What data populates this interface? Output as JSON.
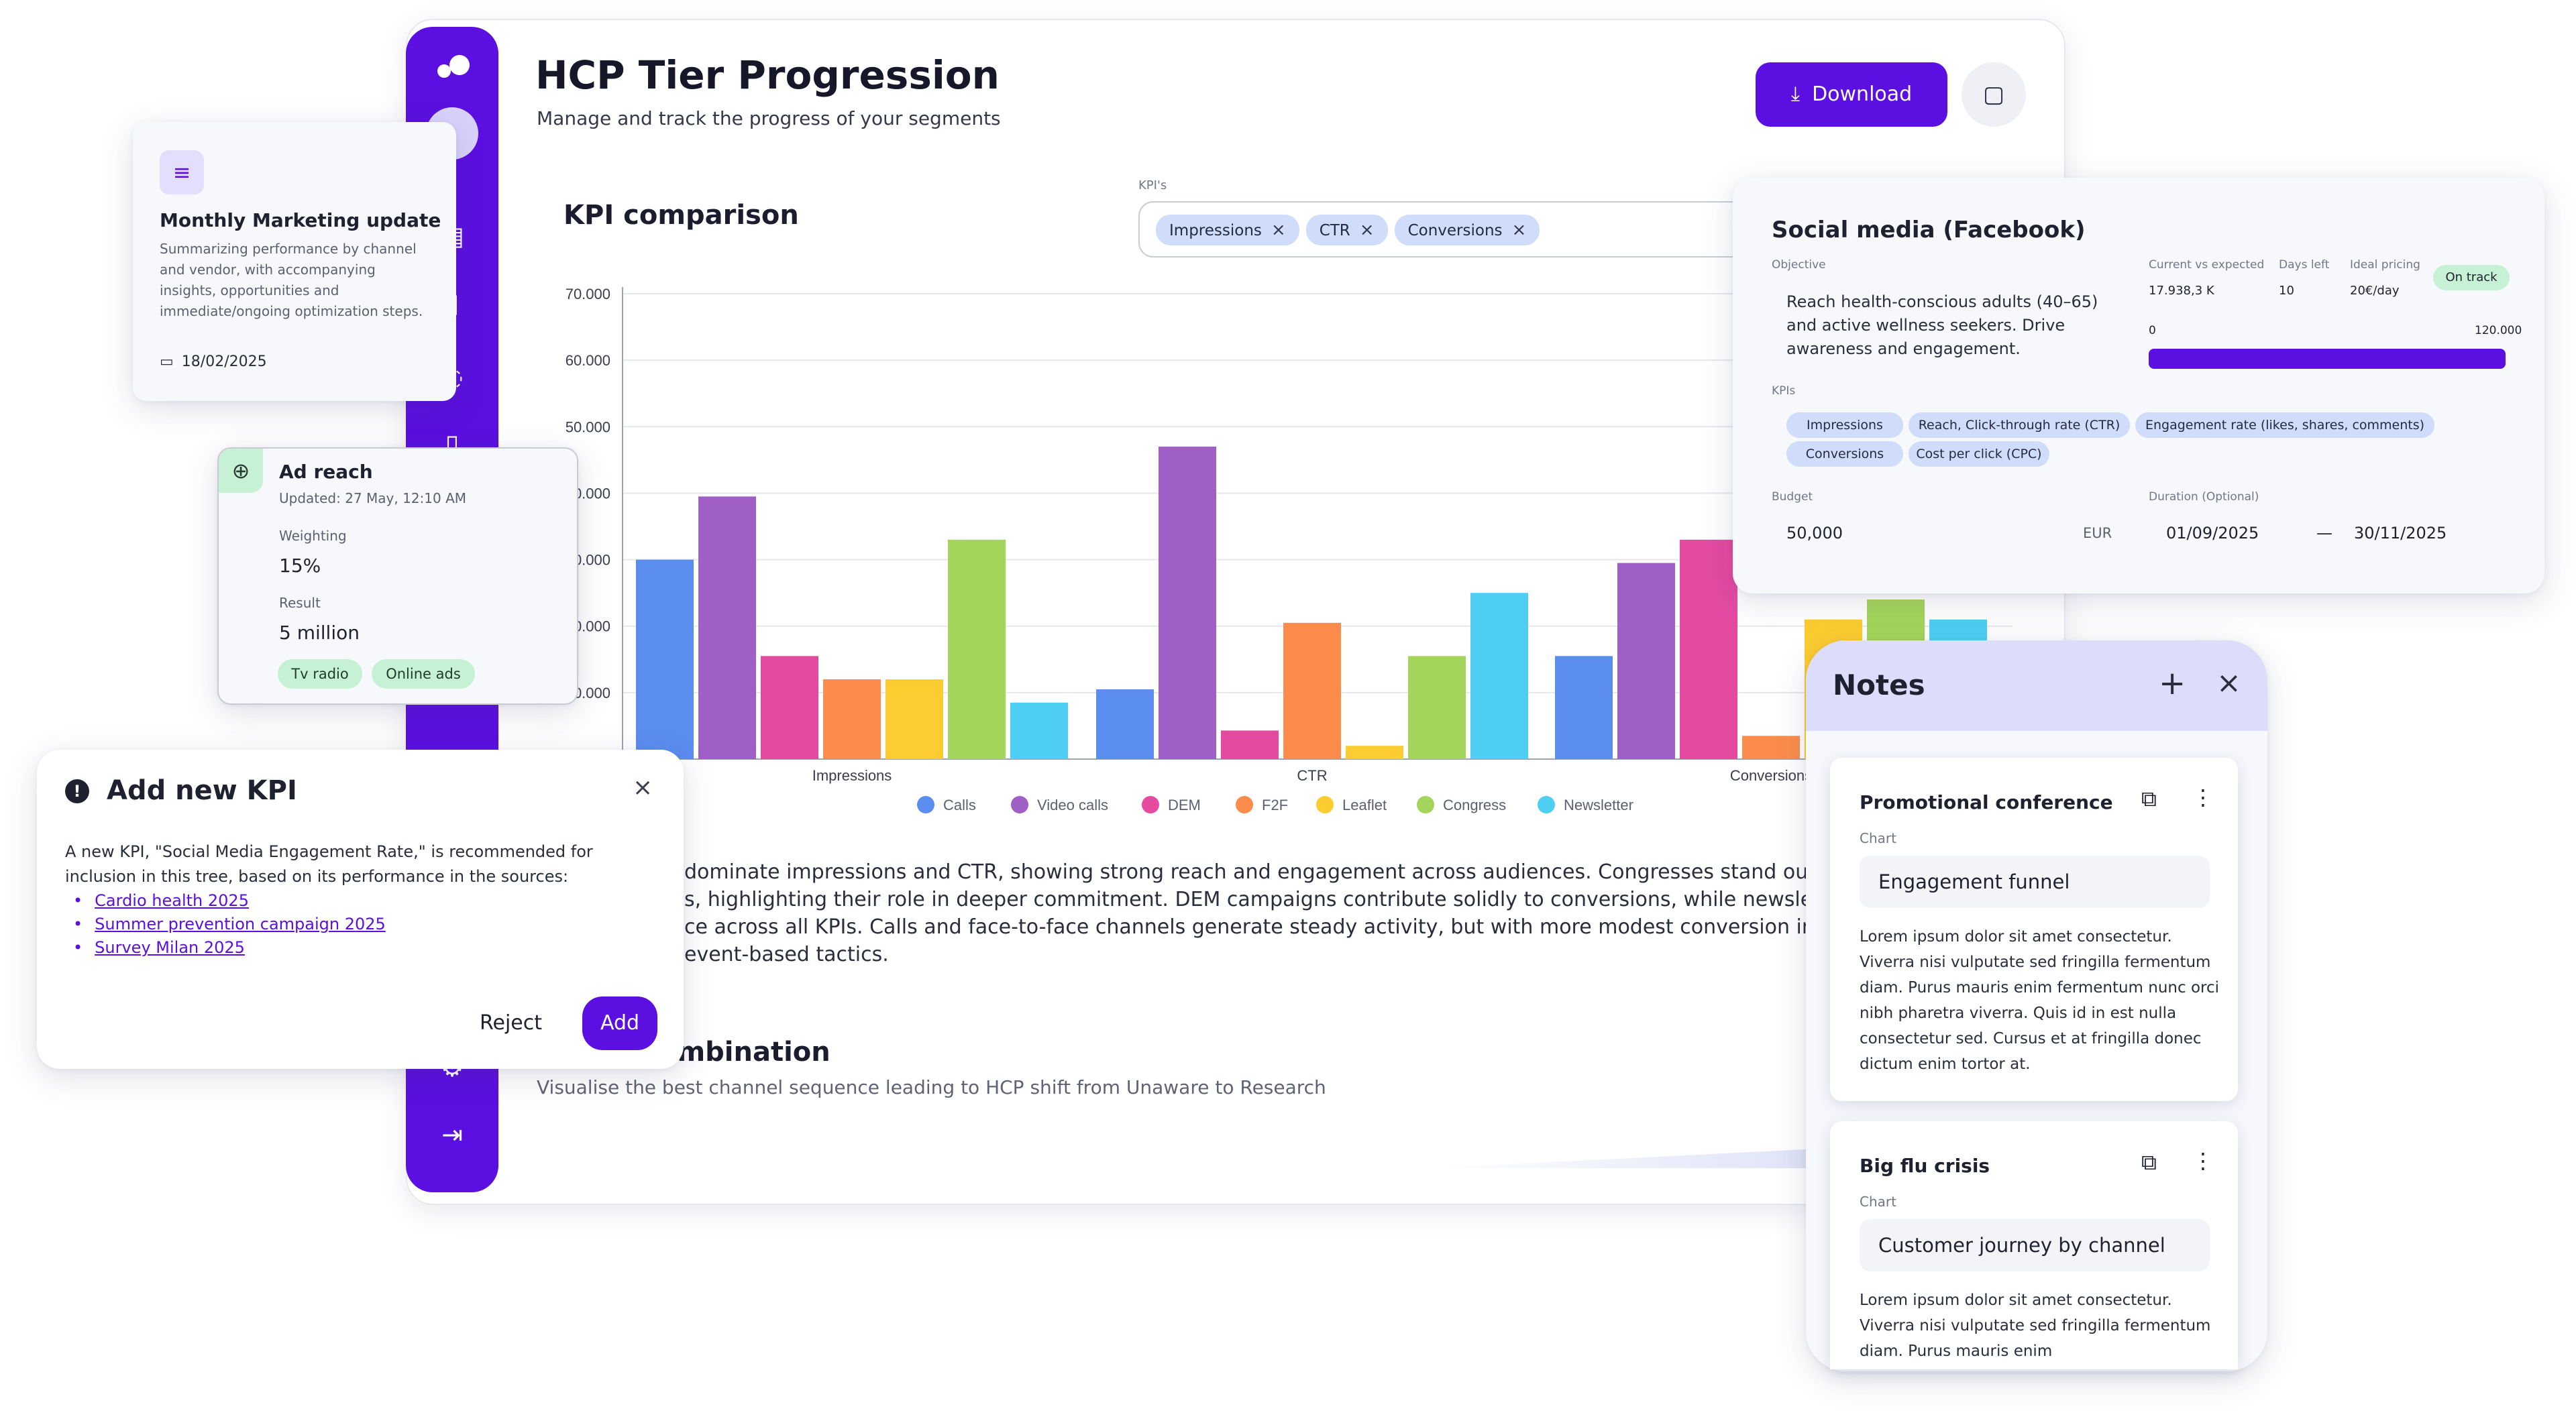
{
  "colors": {
    "accent": "#5b0fe0",
    "chip": "#cfdcfa",
    "tag_green": "#c7f1d5",
    "notes_header": "#dcdcfb"
  },
  "header": {
    "title": "HCP Tier Progression",
    "subtitle": "Manage and track the progress of your segments",
    "download_label": "Download",
    "download_icon": "download-icon",
    "note_icon": "sticky-note-icon"
  },
  "kpi_section": {
    "title": "KPI comparison",
    "selector_label": "KPI's",
    "chips": [
      "Impressions",
      "CTR",
      "Conversions"
    ]
  },
  "chart_data": {
    "type": "bar",
    "categories": [
      "Impressions",
      "CTR",
      "Conversions"
    ],
    "yticks": [
      "70.000",
      "60.000",
      "50.000",
      "40.000",
      "30.000",
      "20.000",
      "10.000"
    ],
    "ytick_values": [
      70000,
      60000,
      50000,
      40000,
      30000,
      20000,
      10000
    ],
    "ylim": [
      0,
      70000
    ],
    "series": [
      {
        "name": "Calls",
        "color": "#5b8def",
        "values": [
          30000,
          10500,
          15500
        ]
      },
      {
        "name": "Video calls",
        "color": "#a05ec7",
        "values": [
          39500,
          47000,
          29500
        ]
      },
      {
        "name": "DEM",
        "color": "#e54aa1",
        "values": [
          15500,
          4300,
          33000
        ]
      },
      {
        "name": "F2F",
        "color": "#fb8c4c",
        "values": [
          12000,
          20500,
          3500
        ]
      },
      {
        "name": "Leaflet",
        "color": "#fccc30",
        "values": [
          12000,
          2000,
          21000
        ]
      },
      {
        "name": "Congress",
        "color": "#a3d55a",
        "values": [
          33000,
          15500,
          24000
        ]
      },
      {
        "name": "Newsletter",
        "color": "#4fcef4",
        "values": [
          8500,
          25000,
          21000
        ]
      }
    ],
    "grid": true,
    "legend_position": "bottom"
  },
  "insight_text": {
    "line1": "dominate impressions and CTR, showing strong reach and engagement across audiences. Congresses stand out as the t",
    "line2": "s, highlighting their role in deeper commitment. DEM campaigns contribute solidly to conversions, while newsletters provic",
    "line3": "ce across all KPIs. Calls and face-to-face channels generate steady activity, but with more modest conversion impact cor",
    "line4": "event-based tactics."
  },
  "combination": {
    "title": "ombination",
    "subtitle": "Visualise the best channel sequence leading to HCP shift from Unaware to Research"
  },
  "monthly_card": {
    "title": "Monthly Marketing update",
    "body": "Summarizing performance by channel and vendor, with accompanying insights, opportunities and immediate/ongoing optimization steps.",
    "date": "18/02/2025",
    "doc_icon": "document-icon",
    "calendar_icon": "calendar-icon"
  },
  "ad_reach": {
    "title": "Ad reach",
    "updated": "Updated: 27 May, 12:10 AM",
    "weighting_label": "Weighting",
    "weighting_value": "15%",
    "result_label": "Result",
    "result_value": "5 million",
    "tags": [
      "Tv radio",
      "Online ads"
    ],
    "icon": "crosshair-icon"
  },
  "add_kpi": {
    "title": "Add new KPI",
    "body": "A new KPI, \"Social Media Engagement Rate,\" is recommended for inclusion in this tree, based on its performance in the sources:",
    "sources": [
      "Cardio health 2025",
      "Summer prevention campaign 2025",
      "Survey Milan 2025"
    ],
    "reject_label": "Reject",
    "add_label": "Add",
    "alert_icon": "alert-icon"
  },
  "social": {
    "title": "Social media (Facebook)",
    "objective_label": "Objective",
    "objective": "Reach health-conscious adults (40–65) and active wellness seekers. Drive awareness and engagement.",
    "current_label": "Current vs expected",
    "current_value": "17.938,3 K",
    "days_label": "Days left",
    "days_value": "10",
    "pricing_label": "Ideal pricing",
    "pricing_value": "20€/day",
    "status": "On track",
    "progress_min": "0",
    "progress_max": "120.000",
    "progress_fraction": 1.0,
    "kpis_label": "KPIs",
    "kpis": [
      "Impressions",
      "Reach, Click-through rate (CTR)",
      "Engagement rate (likes, shares, comments)",
      "Conversions",
      "Cost per click (CPC)"
    ],
    "budget_label": "Budget",
    "budget_value": "50,000",
    "currency": "EUR",
    "duration_label": "Duration (Optional)",
    "start": "01/09/2025",
    "dash": "—",
    "end": "30/11/2025"
  },
  "notes": {
    "title": "Notes",
    "add_icon": "plus-icon",
    "close_icon": "close-icon",
    "items": [
      {
        "title": "Promotional conference",
        "chart_label": "Chart",
        "chart_value": "Engagement funnel",
        "body": "Lorem ipsum dolor sit amet consectetur. Viverra nisi vulputate sed fringilla fermentum diam. Purus mauris enim fermentum nunc orci nibh pharetra viverra. Quis id in est nulla consectetur sed. Cursus et at fringilla donec dictum enim tortor at."
      },
      {
        "title": "Big flu crisis",
        "chart_label": "Chart",
        "chart_value": "Customer journey by channel",
        "body": "Lorem ipsum dolor sit amet consectetur. Viverra nisi vulputate sed fringilla fermentum diam. Purus mauris enim"
      }
    ]
  }
}
